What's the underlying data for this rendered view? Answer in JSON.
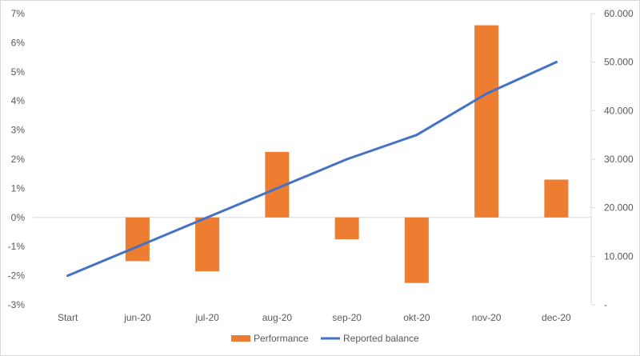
{
  "chart_data": {
    "type": "bar+line",
    "categories": [
      "Start",
      "jun-20",
      "jul-20",
      "aug-20",
      "sep-20",
      "okt-20",
      "nov-20",
      "dec-20"
    ],
    "series": [
      {
        "name": "Performance",
        "type": "bar",
        "axis": "left",
        "color": "#ed7d31",
        "values": [
          null,
          -1.5,
          -1.85,
          2.25,
          -0.75,
          -2.25,
          6.6,
          1.3
        ]
      },
      {
        "name": "Reported balance",
        "type": "line",
        "axis": "right",
        "color": "#4472c4",
        "values": [
          6000,
          12000,
          18000,
          24000,
          30000,
          35000,
          43500,
          50000
        ]
      }
    ],
    "left_axis": {
      "ylim": [
        -3,
        7
      ],
      "ticks": [
        -3,
        -2,
        -1,
        0,
        1,
        2,
        3,
        4,
        5,
        6,
        7
      ],
      "tick_labels": [
        "-3%",
        "-2%",
        "-1%",
        "0%",
        "1%",
        "2%",
        "3%",
        "4%",
        "5%",
        "6%",
        "7%"
      ]
    },
    "right_axis": {
      "ylim": [
        0,
        60000
      ],
      "ticks": [
        0,
        10000,
        20000,
        30000,
        40000,
        50000,
        60000
      ],
      "tick_labels": [
        "-",
        "10.000",
        "20.000",
        "30.000",
        "40.000",
        "50.000",
        "60.000"
      ]
    },
    "grid": false,
    "legend": {
      "position": "bottom",
      "entries": [
        "Performance",
        "Reported balance"
      ]
    }
  }
}
